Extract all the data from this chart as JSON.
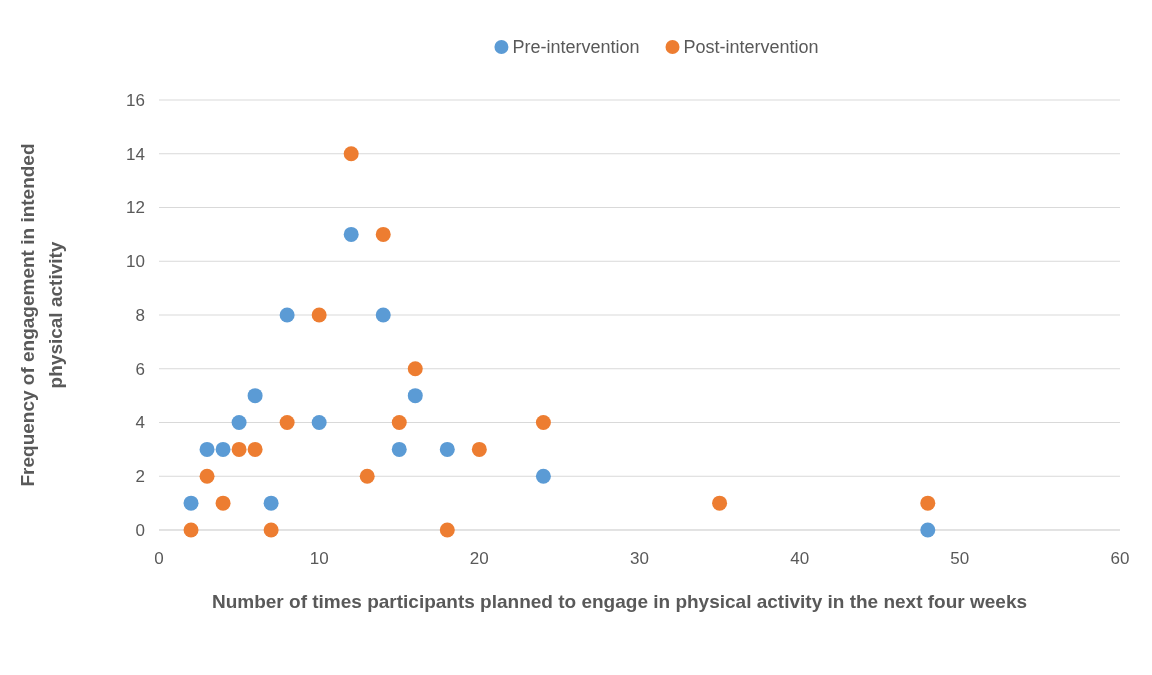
{
  "chart_data": {
    "type": "scatter",
    "xlabel": "Number of times participants planned to engage in physical activity in the next four weeks",
    "ylabel": "Frequency of  engagement in intended physical activity",
    "xlim": [
      0,
      60
    ],
    "xticks": [
      0,
      10,
      20,
      30,
      40,
      50,
      60
    ],
    "ylim": [
      0,
      16
    ],
    "yticks": [
      0,
      2,
      4,
      6,
      8,
      10,
      12,
      14,
      16
    ],
    "grid": "y",
    "legend": "top",
    "marker": "circle",
    "series": [
      {
        "name": "Pre-intervention",
        "color": "#5b9bd5",
        "x": [
          2,
          3,
          4,
          5,
          6,
          7,
          8,
          10,
          12,
          14,
          15,
          16,
          18,
          24,
          48
        ],
        "values": [
          1,
          3,
          3,
          4,
          5,
          1,
          8,
          4,
          11,
          8,
          3,
          5,
          3,
          2,
          0
        ]
      },
      {
        "name": "Post-intervention",
        "color": "#ed7d31",
        "x": [
          2,
          3,
          4,
          5,
          6,
          7,
          8,
          10,
          12,
          13,
          14,
          15,
          16,
          18,
          20,
          24,
          35,
          48
        ],
        "values": [
          0,
          2,
          1,
          3,
          3,
          0,
          4,
          8,
          14,
          2,
          11,
          4,
          6,
          0,
          3,
          4,
          1,
          1
        ]
      }
    ]
  }
}
